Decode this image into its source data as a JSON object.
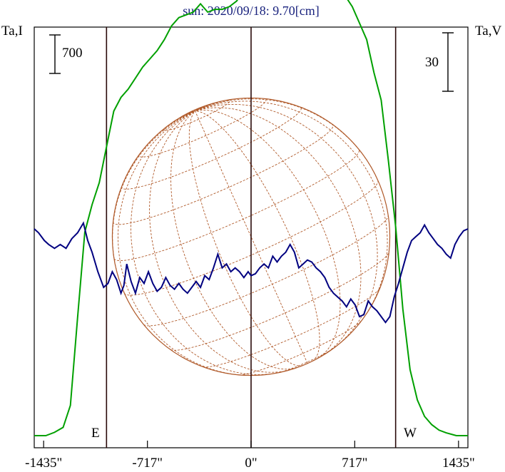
{
  "title": "sun: 2020/09/18: 9.70[cm]",
  "colors": {
    "title": "#1a237e",
    "intensity": "#00a000",
    "polarization": "#000080",
    "disk": "#b05a2a",
    "axis": "#000000",
    "marker_line": "#2a0a0a"
  },
  "labels": {
    "left_axis": "Ta,I",
    "right_axis": "Ta,V",
    "left_scale": "700",
    "right_scale": "30",
    "east": "E",
    "west": "W"
  },
  "chart_data": {
    "type": "line",
    "title": "sun: 2020/09/18: 9.70[cm]",
    "x_unit": "arcsec",
    "xlim": [
      -1500,
      1500
    ],
    "x_ticks": [
      -1435,
      -717,
      0,
      717,
      1435
    ],
    "x_tick_labels": [
      "-1435\"",
      "-717\"",
      "0\"",
      "717\"",
      "1435\""
    ],
    "limb_markers": [
      -1000,
      1000
    ],
    "center_marker": 0,
    "series": [
      {
        "name": "Ta,I",
        "color": "#00a000",
        "scale_bar": 700,
        "points": [
          [
            -1500,
            0
          ],
          [
            -1420,
            0
          ],
          [
            -1360,
            60
          ],
          [
            -1300,
            150
          ],
          [
            -1250,
            550
          ],
          [
            -1200,
            2150
          ],
          [
            -1150,
            3700
          ],
          [
            -1100,
            4200
          ],
          [
            -1050,
            4600
          ],
          [
            -1000,
            5250
          ],
          [
            -950,
            5900
          ],
          [
            -900,
            6150
          ],
          [
            -850,
            6300
          ],
          [
            -800,
            6500
          ],
          [
            -750,
            6700
          ],
          [
            -700,
            6850
          ],
          [
            -650,
            7000
          ],
          [
            -600,
            7200
          ],
          [
            -550,
            7450
          ],
          [
            -500,
            7600
          ],
          [
            -450,
            7650
          ],
          [
            -400,
            7700
          ],
          [
            -350,
            7850
          ],
          [
            -300,
            7700
          ],
          [
            -250,
            7750
          ],
          [
            -200,
            7750
          ],
          [
            -150,
            7800
          ],
          [
            -100,
            7900
          ],
          [
            -50,
            8100
          ],
          [
            0,
            8300
          ],
          [
            40,
            8350
          ],
          [
            80,
            8450
          ],
          [
            100,
            8350
          ],
          [
            130,
            8650
          ],
          [
            160,
            8700
          ],
          [
            180,
            8850
          ],
          [
            200,
            8700
          ],
          [
            230,
            8500
          ],
          [
            260,
            8400
          ],
          [
            300,
            8200
          ],
          [
            350,
            8000
          ],
          [
            400,
            8000
          ],
          [
            450,
            8050
          ],
          [
            500,
            8100
          ],
          [
            540,
            8300
          ],
          [
            570,
            8400
          ],
          [
            600,
            8350
          ],
          [
            650,
            8000
          ],
          [
            700,
            7800
          ],
          [
            750,
            7500
          ],
          [
            800,
            7200
          ],
          [
            850,
            6600
          ],
          [
            900,
            6100
          ],
          [
            950,
            5000
          ],
          [
            1000,
            3800
          ],
          [
            1050,
            2300
          ],
          [
            1100,
            1200
          ],
          [
            1150,
            650
          ],
          [
            1200,
            350
          ],
          [
            1250,
            200
          ],
          [
            1300,
            100
          ],
          [
            1350,
            50
          ],
          [
            1420,
            0
          ],
          [
            1500,
            0
          ]
        ]
      },
      {
        "name": "Ta,V",
        "color": "#000080",
        "scale_bar": 30,
        "points": [
          [
            -1500,
            0
          ],
          [
            -1470,
            -2
          ],
          [
            -1430,
            -6
          ],
          [
            -1400,
            -8
          ],
          [
            -1360,
            -10
          ],
          [
            -1320,
            -8
          ],
          [
            -1280,
            -10
          ],
          [
            -1240,
            -5
          ],
          [
            -1200,
            -2
          ],
          [
            -1160,
            3
          ],
          [
            -1130,
            -6
          ],
          [
            -1100,
            -12
          ],
          [
            -1060,
            -22
          ],
          [
            -1020,
            -30
          ],
          [
            -990,
            -28
          ],
          [
            -960,
            -22
          ],
          [
            -930,
            -26
          ],
          [
            -900,
            -33
          ],
          [
            -880,
            -29
          ],
          [
            -860,
            -18
          ],
          [
            -830,
            -27
          ],
          [
            -800,
            -33
          ],
          [
            -770,
            -25
          ],
          [
            -740,
            -28
          ],
          [
            -710,
            -22
          ],
          [
            -680,
            -28
          ],
          [
            -650,
            -32
          ],
          [
            -620,
            -30
          ],
          [
            -590,
            -25
          ],
          [
            -560,
            -29
          ],
          [
            -530,
            -31
          ],
          [
            -500,
            -28
          ],
          [
            -470,
            -31
          ],
          [
            -440,
            -33
          ],
          [
            -410,
            -30
          ],
          [
            -380,
            -27
          ],
          [
            -350,
            -30
          ],
          [
            -320,
            -24
          ],
          [
            -290,
            -26
          ],
          [
            -260,
            -20
          ],
          [
            -230,
            -13
          ],
          [
            -200,
            -20
          ],
          [
            -170,
            -18
          ],
          [
            -140,
            -22
          ],
          [
            -110,
            -20
          ],
          [
            -80,
            -22
          ],
          [
            -50,
            -25
          ],
          [
            -20,
            -22
          ],
          [
            0,
            -24
          ],
          [
            30,
            -23
          ],
          [
            60,
            -20
          ],
          [
            90,
            -18
          ],
          [
            120,
            -20
          ],
          [
            150,
            -14
          ],
          [
            180,
            -17
          ],
          [
            210,
            -14
          ],
          [
            240,
            -12
          ],
          [
            270,
            -8
          ],
          [
            300,
            -12
          ],
          [
            330,
            -20
          ],
          [
            360,
            -18
          ],
          [
            390,
            -16
          ],
          [
            420,
            -17
          ],
          [
            450,
            -20
          ],
          [
            480,
            -22
          ],
          [
            510,
            -25
          ],
          [
            540,
            -30
          ],
          [
            570,
            -33
          ],
          [
            600,
            -35
          ],
          [
            630,
            -37
          ],
          [
            660,
            -40
          ],
          [
            690,
            -36
          ],
          [
            720,
            -39
          ],
          [
            750,
            -45
          ],
          [
            780,
            -44
          ],
          [
            810,
            -37
          ],
          [
            840,
            -40
          ],
          [
            870,
            -42
          ],
          [
            900,
            -45
          ],
          [
            930,
            -48
          ],
          [
            960,
            -45
          ],
          [
            990,
            -35
          ],
          [
            1020,
            -28
          ],
          [
            1050,
            -20
          ],
          [
            1080,
            -12
          ],
          [
            1110,
            -6
          ],
          [
            1140,
            -4
          ],
          [
            1170,
            -2
          ],
          [
            1200,
            2
          ],
          [
            1230,
            -2
          ],
          [
            1260,
            -5
          ],
          [
            1290,
            -8
          ],
          [
            1320,
            -10
          ],
          [
            1350,
            -13
          ],
          [
            1380,
            -15
          ],
          [
            1410,
            -8
          ],
          [
            1440,
            -4
          ],
          [
            1470,
            -1
          ],
          [
            1500,
            0
          ]
        ]
      }
    ],
    "disk": {
      "radius_arcsec": 960,
      "grid": "heliographic",
      "p_angle_deg": 24,
      "b0_deg": 7
    },
    "grid": false,
    "legend": "none"
  }
}
